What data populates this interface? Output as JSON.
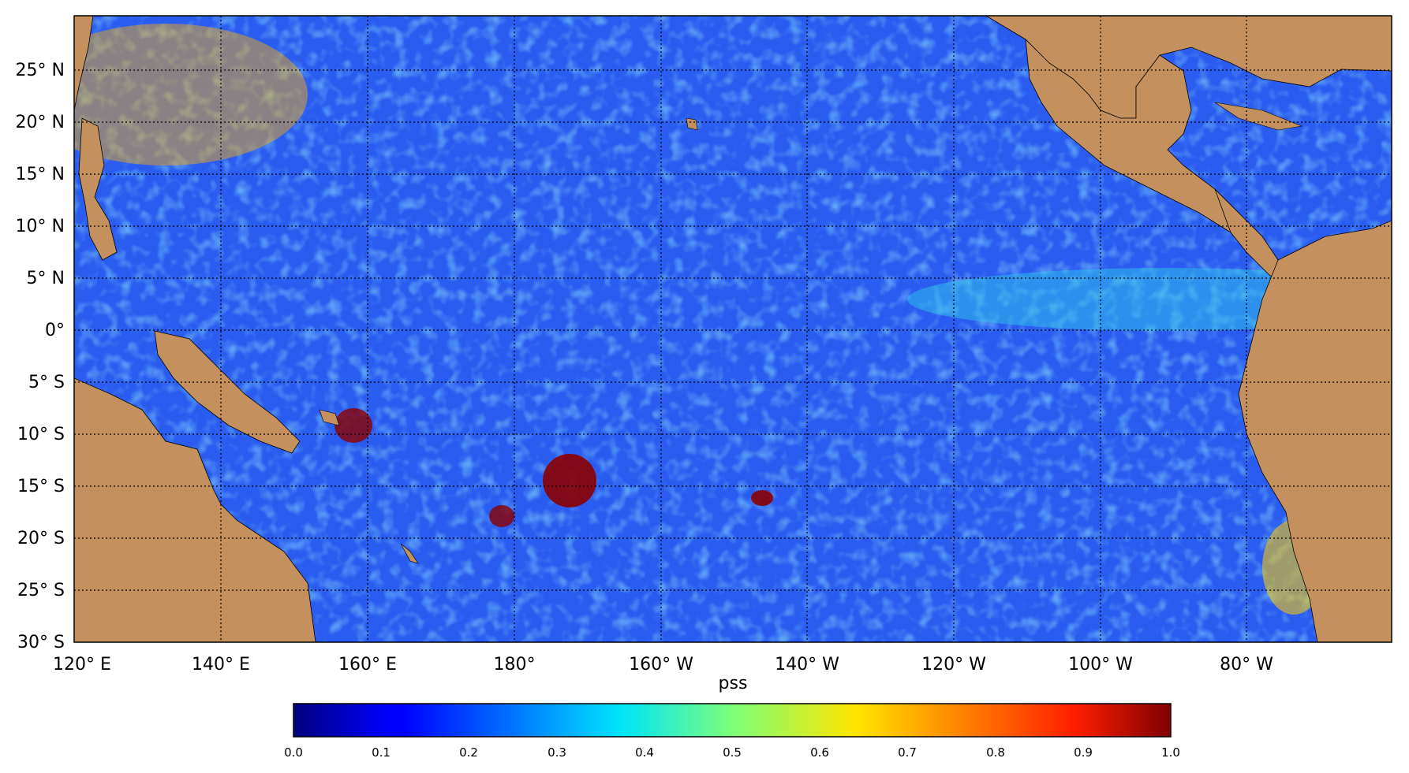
{
  "map": {
    "xlabel": "pss",
    "lon_ticks": [
      "120° E",
      "140° E",
      "160° E",
      "180°",
      "160° W",
      "140° W",
      "120° W",
      "100° W",
      "80° W"
    ],
    "lat_ticks": [
      "25° N",
      "20° N",
      "15° N",
      "10° N",
      "5° N",
      "0°",
      "5° S",
      "10° S",
      "15° S",
      "20° S",
      "25° S",
      "30° S"
    ],
    "land_color": "#c4915e",
    "ocean_base_color": "#2a5cf0",
    "colormap": "jet"
  },
  "colorbar": {
    "ticks": [
      "0.0",
      "0.1",
      "0.2",
      "0.3",
      "0.4",
      "0.5",
      "0.6",
      "0.7",
      "0.8",
      "0.9",
      "1.0"
    ],
    "range": [
      0.0,
      1.0
    ],
    "colormap": "jet"
  }
}
